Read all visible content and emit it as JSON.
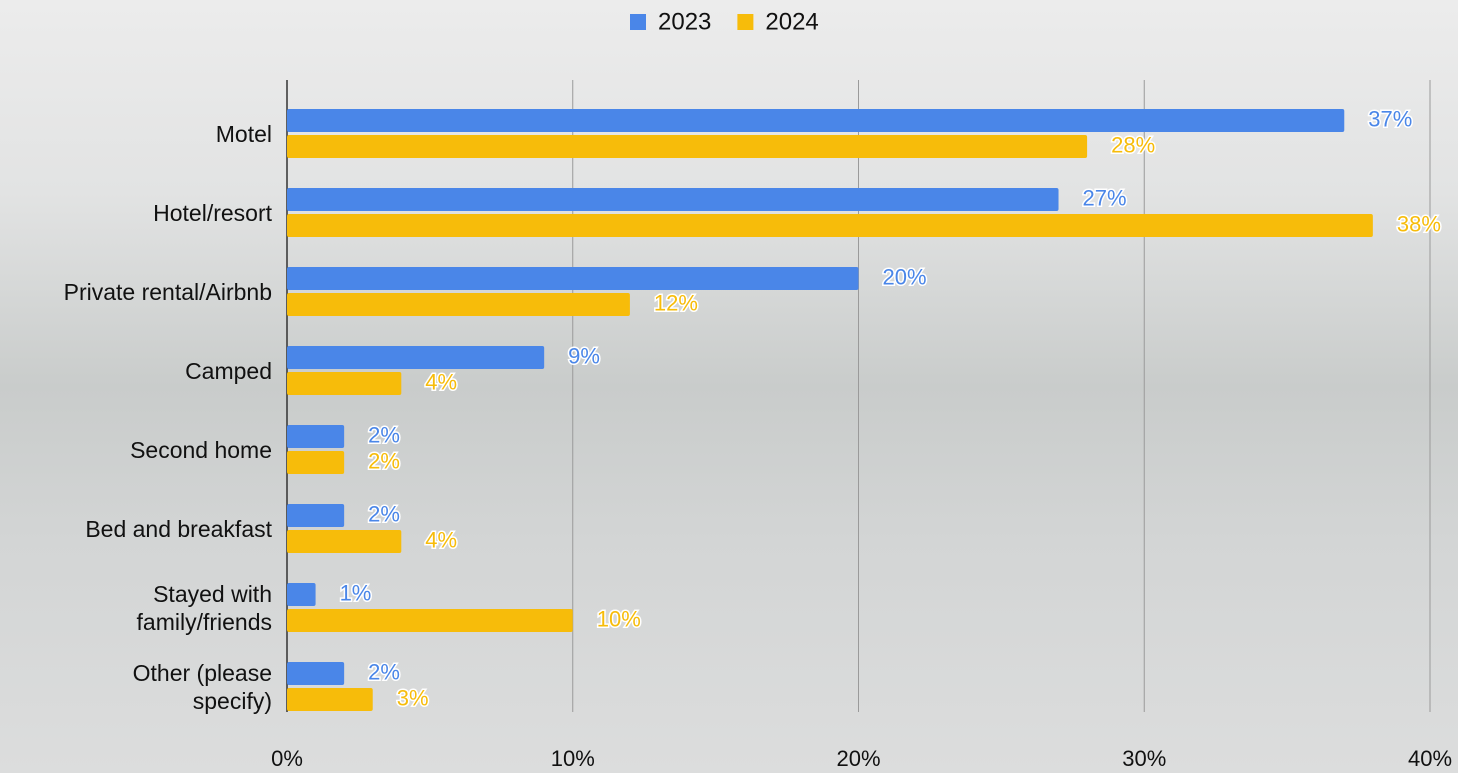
{
  "chart_data": {
    "type": "bar",
    "orientation": "horizontal",
    "categories": [
      "Motel",
      "Hotel/resort",
      "Private rental/Airbnb",
      "Camped",
      "Second home",
      "Bed and breakfast",
      "Stayed with\nfamily/friends",
      "Other (please\nspecify)"
    ],
    "series": [
      {
        "name": "2023",
        "color": "#4a86e8",
        "values": [
          37,
          27,
          20,
          9,
          2,
          2,
          1,
          2
        ],
        "value_labels": [
          "37%",
          "27%",
          "20%",
          "9%",
          "2%",
          "2%",
          "1%",
          "2%"
        ]
      },
      {
        "name": "2024",
        "color": "#f7bc0a",
        "values": [
          28,
          38,
          12,
          4,
          2,
          4,
          10,
          3
        ],
        "value_labels": [
          "28%",
          "38%",
          "12%",
          "4%",
          "2%",
          "4%",
          "10%",
          "3%"
        ]
      }
    ],
    "xlim": [
      0,
      40
    ],
    "xticks": [
      {
        "value": 0,
        "label": "0%"
      },
      {
        "value": 10,
        "label": "10%"
      },
      {
        "value": 20,
        "label": "20%"
      },
      {
        "value": 30,
        "label": "30%"
      },
      {
        "value": 40,
        "label": "40%"
      }
    ],
    "grid": true,
    "legend": "top"
  }
}
